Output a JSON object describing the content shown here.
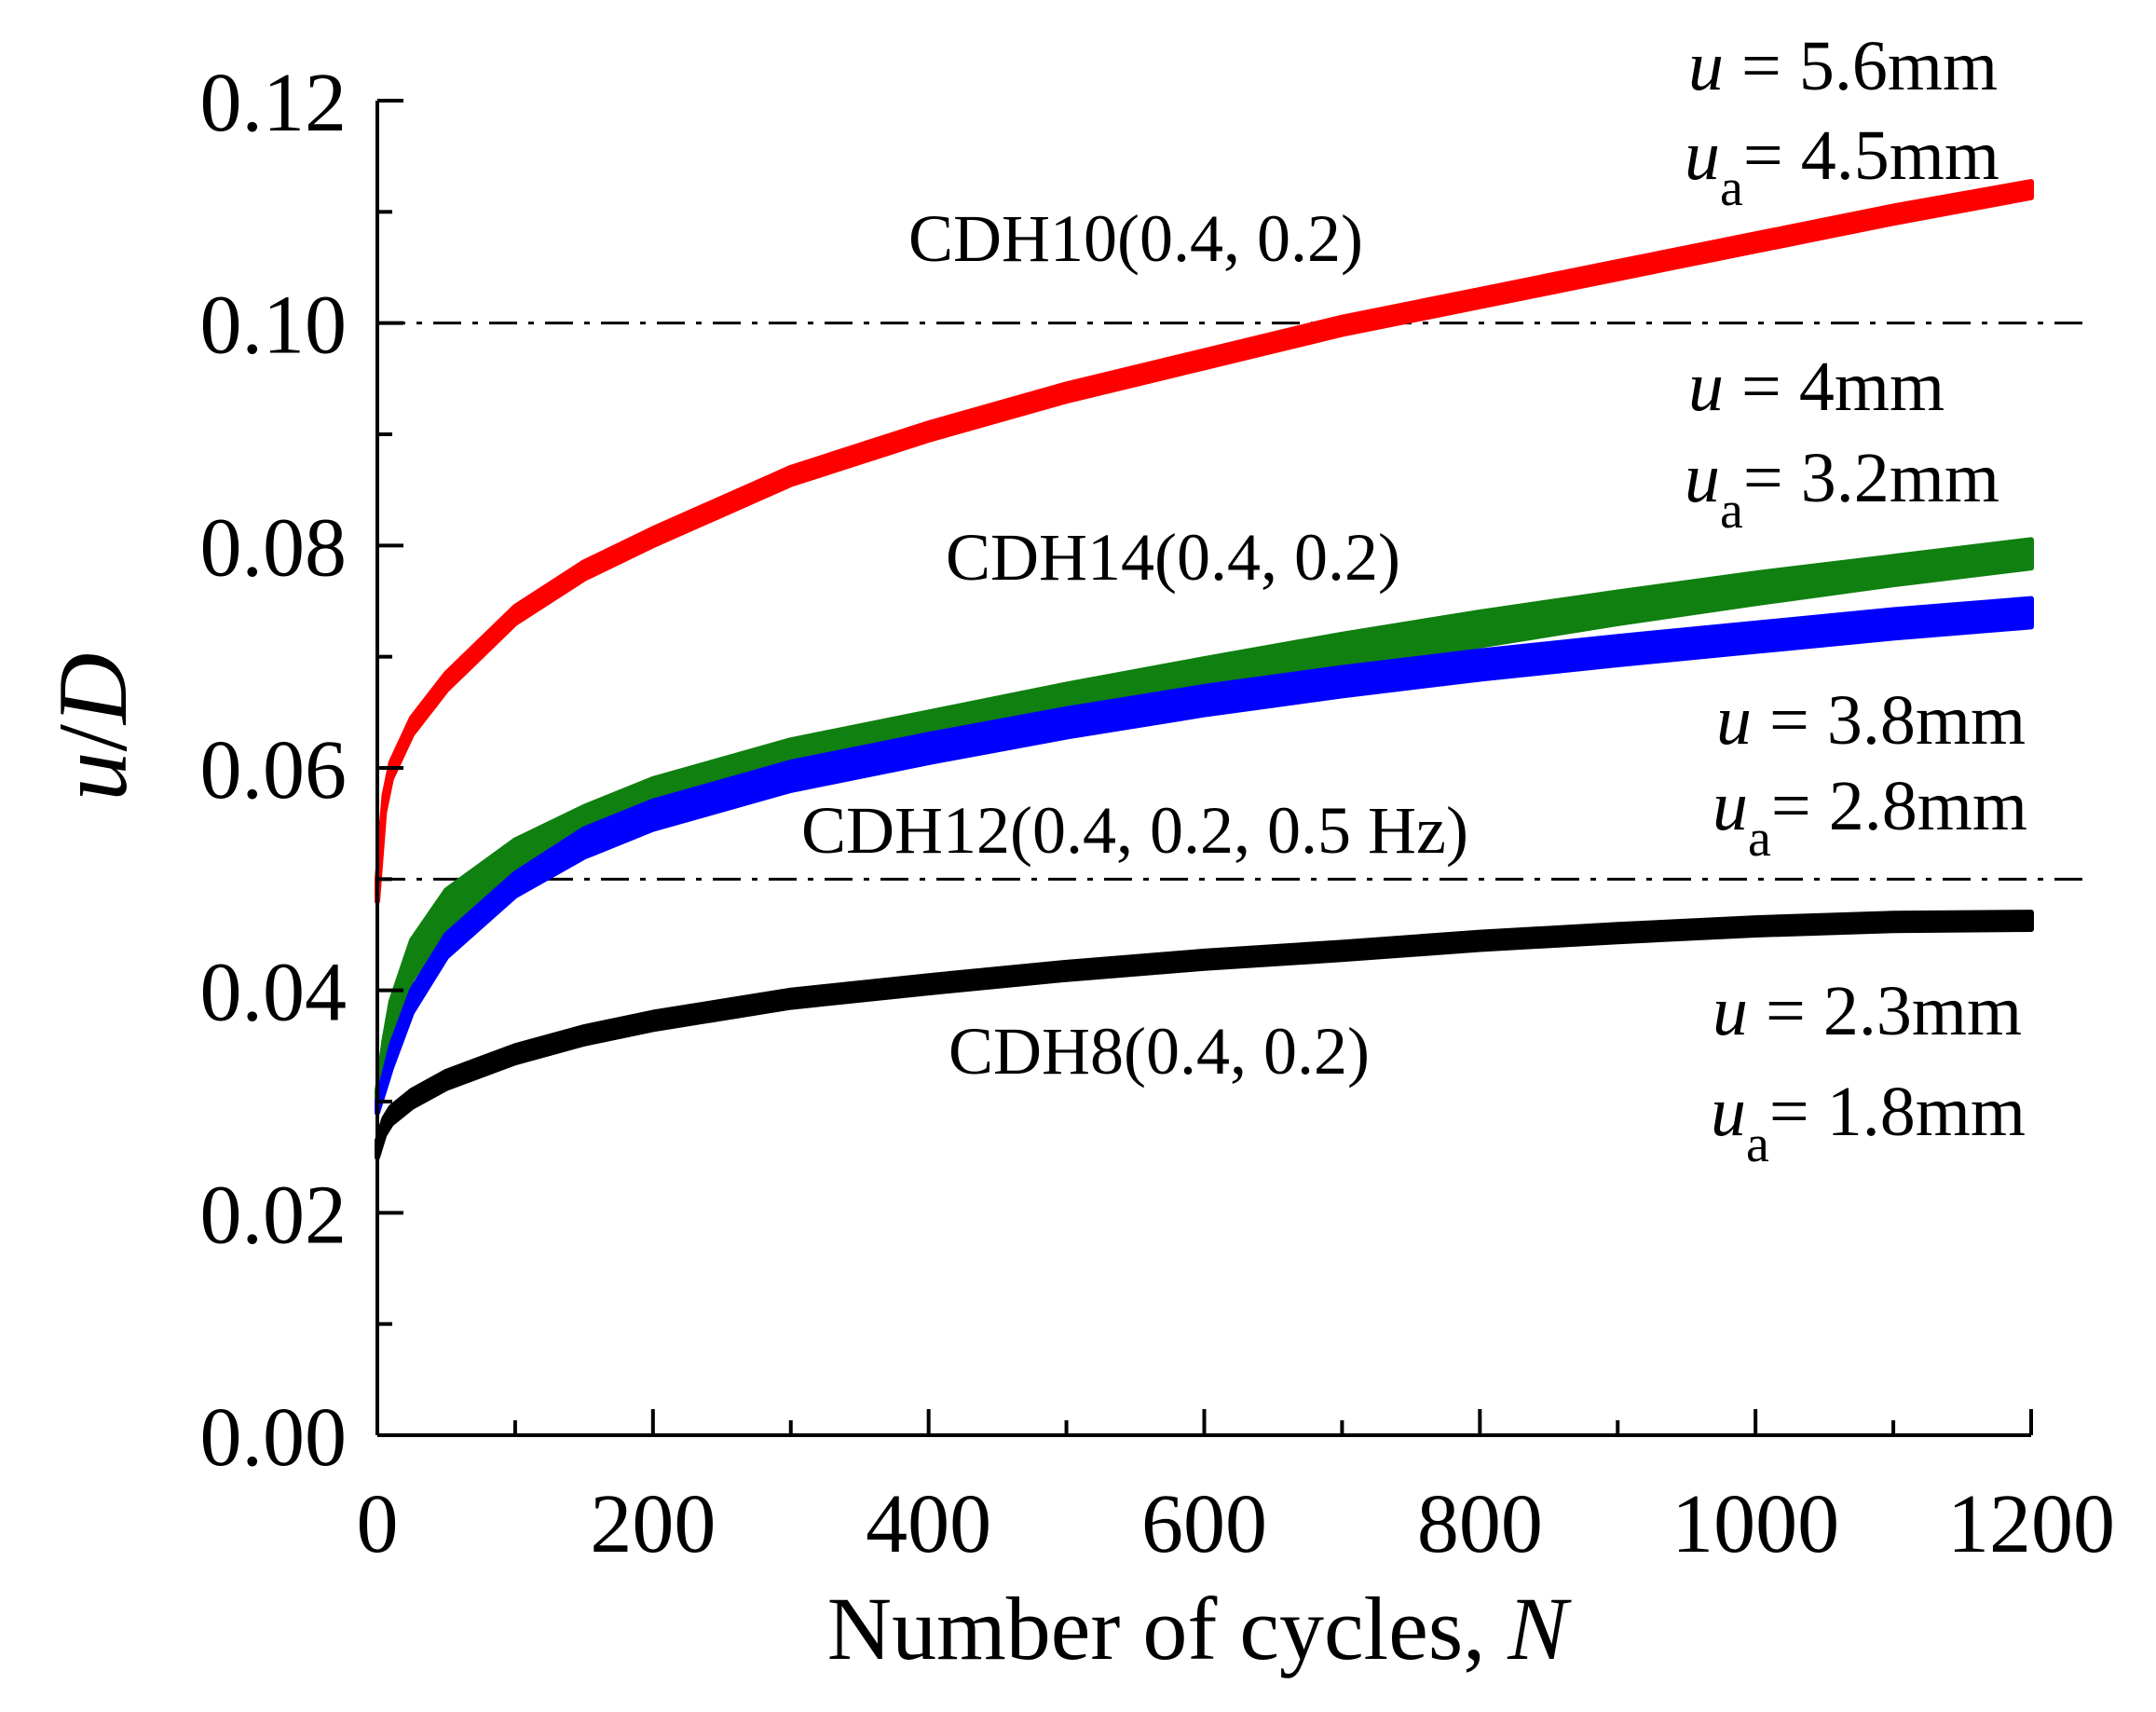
{
  "chart_data": {
    "type": "line",
    "xlabel": "Number of cycles, ",
    "xlabel_var": "N",
    "ylabel_var_u": "u",
    "ylabel_slash": "/",
    "ylabel_var_d": "D",
    "xlim": [
      0,
      1200
    ],
    "ylim": [
      0,
      0.12
    ],
    "x_ticks": [
      "0",
      "200",
      "400",
      "600",
      "800",
      "1000",
      "1200"
    ],
    "y_ticks": [
      "0.00",
      "0.02",
      "0.04",
      "0.06",
      "0.08",
      "0.10",
      "0.12"
    ],
    "grid": false,
    "reference_lines": [
      {
        "name": "threshold-0.10",
        "y": 0.1,
        "style": "dash-dot"
      },
      {
        "name": "threshold-0.05",
        "y": 0.05,
        "style": "dash-dot"
      }
    ],
    "series": [
      {
        "name": "CDH10(0.4, 0.2)",
        "color": "#ff0000",
        "x": [
          0,
          5,
          10,
          25,
          50,
          100,
          150,
          200,
          300,
          400,
          500,
          600,
          700,
          800,
          900,
          1000,
          1100,
          1200
        ],
        "ymin": [
          0.048,
          0.056,
          0.059,
          0.063,
          0.067,
          0.073,
          0.077,
          0.08,
          0.0855,
          0.0895,
          0.093,
          0.096,
          0.099,
          0.1015,
          0.104,
          0.1065,
          0.109,
          0.1113
        ],
        "ymax": [
          0.05,
          0.0575,
          0.0605,
          0.0645,
          0.0685,
          0.0745,
          0.0785,
          0.0815,
          0.087,
          0.091,
          0.0945,
          0.0975,
          0.1005,
          0.103,
          0.1055,
          0.108,
          0.1105,
          0.1127
        ]
      },
      {
        "name": "CDH14(0.4, 0.2)",
        "color": "#108010",
        "x": [
          0,
          5,
          10,
          25,
          50,
          100,
          150,
          200,
          300,
          400,
          500,
          600,
          700,
          800,
          900,
          1000,
          1100,
          1200
        ],
        "ymin": [
          0.029,
          0.033,
          0.036,
          0.041,
          0.0455,
          0.05,
          0.0535,
          0.056,
          0.0595,
          0.062,
          0.0645,
          0.0668,
          0.069,
          0.071,
          0.073,
          0.0748,
          0.0765,
          0.078
        ],
        "ymax": [
          0.031,
          0.0355,
          0.039,
          0.0445,
          0.049,
          0.0535,
          0.0565,
          0.059,
          0.0625,
          0.065,
          0.0675,
          0.0698,
          0.072,
          0.074,
          0.0758,
          0.0775,
          0.079,
          0.0805
        ]
      },
      {
        "name": "CDH12(0.4, 0.2, 0.5 Hz)",
        "color": "#0000ff",
        "x": [
          0,
          5,
          10,
          25,
          50,
          100,
          150,
          200,
          300,
          400,
          500,
          600,
          700,
          800,
          900,
          1000,
          1100,
          1200
        ],
        "ymin": [
          0.029,
          0.031,
          0.033,
          0.038,
          0.043,
          0.0485,
          0.052,
          0.0545,
          0.058,
          0.0605,
          0.0628,
          0.0648,
          0.0665,
          0.068,
          0.0693,
          0.0705,
          0.0717,
          0.0727
        ],
        "ymax": [
          0.03,
          0.0325,
          0.035,
          0.04,
          0.045,
          0.0505,
          0.0545,
          0.057,
          0.0605,
          0.063,
          0.0653,
          0.0673,
          0.069,
          0.0705,
          0.0718,
          0.073,
          0.0742,
          0.0752
        ]
      },
      {
        "name": "CDH8(0.4, 0.2)",
        "color": "#000000",
        "x": [
          0,
          5,
          10,
          25,
          50,
          100,
          150,
          200,
          300,
          400,
          500,
          600,
          700,
          800,
          900,
          1000,
          1100,
          1200
        ],
        "ymin": [
          0.025,
          0.027,
          0.028,
          0.0295,
          0.0312,
          0.0335,
          0.0352,
          0.0365,
          0.0385,
          0.0398,
          0.041,
          0.042,
          0.0428,
          0.0437,
          0.0444,
          0.045,
          0.0454,
          0.0455
        ],
        "ymax": [
          0.0265,
          0.0285,
          0.0295,
          0.031,
          0.0327,
          0.035,
          0.0367,
          0.038,
          0.04,
          0.0413,
          0.0425,
          0.0435,
          0.0443,
          0.0452,
          0.0459,
          0.0465,
          0.0469,
          0.047
        ]
      }
    ],
    "curve_labels": [
      {
        "series": "CDH10(0.4, 0.2)",
        "text": "CDH10(0.4, 0.2)"
      },
      {
        "series": "CDH14(0.4, 0.2)",
        "text": "CDH14(0.4, 0.2)"
      },
      {
        "series": "CDH12(0.4, 0.2, 0.5 Hz)",
        "text": "CDH12(0.4, 0.2, 0.5 Hz)"
      },
      {
        "series": "CDH8(0.4, 0.2)",
        "text": "CDH8(0.4, 0.2)"
      }
    ],
    "annotations": [
      {
        "series": "CDH10(0.4, 0.2)",
        "u_var": "u",
        "u_value": " = 5.6mm",
        "ua_var": "u",
        "ua_sub": "a",
        "ua_value": "= 4.5mm"
      },
      {
        "series": "CDH14(0.4, 0.2)",
        "u_var": "u",
        "u_value": " = 4mm",
        "ua_var": "u",
        "ua_sub": "a",
        "ua_value": "= 3.2mm"
      },
      {
        "series": "CDH12(0.4, 0.2, 0.5 Hz)",
        "u_var": "u",
        "u_value": " = 3.8mm",
        "ua_var": "u",
        "ua_sub": "a",
        "ua_value": "= 2.8mm"
      },
      {
        "series": "CDH8(0.4, 0.2)",
        "u_var": "u",
        "u_value": " = 2.3mm",
        "ua_var": "u",
        "ua_sub": "a",
        "ua_value": "= 1.8mm"
      }
    ]
  }
}
